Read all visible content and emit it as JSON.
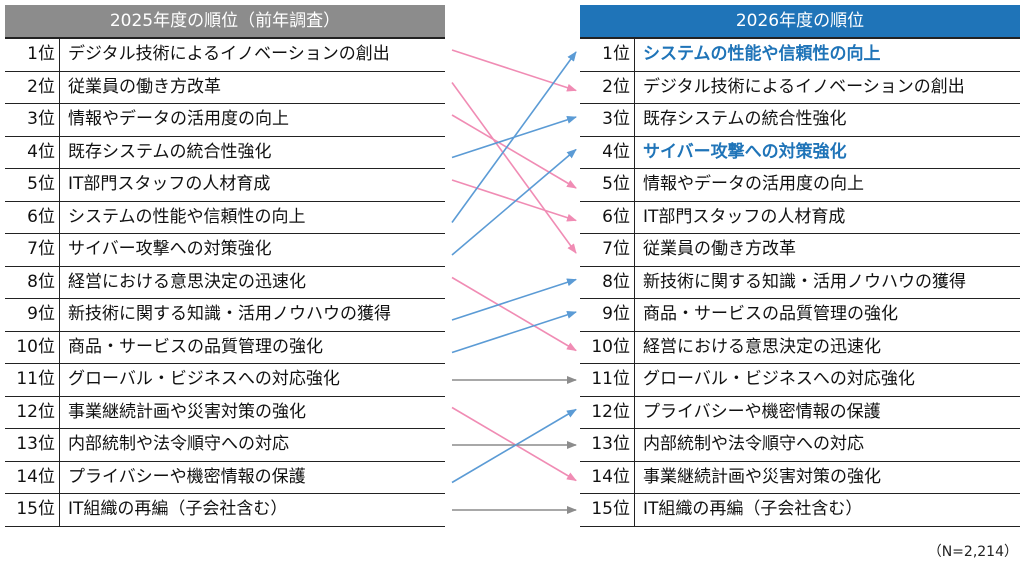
{
  "left": {
    "header": "2025年度の順位（前年調査）",
    "rows": [
      {
        "rank": "1位",
        "label": "デジタル技術によるイノベーションの創出"
      },
      {
        "rank": "2位",
        "label": "従業員の働き方改革"
      },
      {
        "rank": "3位",
        "label": "情報やデータの活用度の向上"
      },
      {
        "rank": "4位",
        "label": "既存システムの統合性強化"
      },
      {
        "rank": "5位",
        "label": "IT部門スタッフの人材育成"
      },
      {
        "rank": "6位",
        "label": "システムの性能や信頼性の向上"
      },
      {
        "rank": "7位",
        "label": "サイバー攻撃への対策強化"
      },
      {
        "rank": "8位",
        "label": "経営における意思決定の迅速化"
      },
      {
        "rank": "9位",
        "label": "新技術に関する知識・活用ノウハウの獲得"
      },
      {
        "rank": "10位",
        "label": "商品・サービスの品質管理の強化"
      },
      {
        "rank": "11位",
        "label": "グローバル・ビジネスへの対応強化"
      },
      {
        "rank": "12位",
        "label": "事業継続計画や災害対策の強化"
      },
      {
        "rank": "13位",
        "label": "内部統制や法令順守への対応"
      },
      {
        "rank": "14位",
        "label": "プライバシーや機密情報の保護"
      },
      {
        "rank": "15位",
        "label": "IT組織の再編（子会社含む）"
      }
    ]
  },
  "right": {
    "header": "2026年度の順位",
    "rows": [
      {
        "rank": "1位",
        "label": "システムの性能や信頼性の向上"
      },
      {
        "rank": "2位",
        "label": "デジタル技術によるイノベーションの創出"
      },
      {
        "rank": "3位",
        "label": "既存システムの統合性強化"
      },
      {
        "rank": "4位",
        "label": "サイバー攻撃への対策強化"
      },
      {
        "rank": "5位",
        "label": "情報やデータの活用度の向上"
      },
      {
        "rank": "6位",
        "label": "IT部門スタッフの人材育成"
      },
      {
        "rank": "7位",
        "label": "従業員の働き方改革"
      },
      {
        "rank": "8位",
        "label": "新技術に関する知識・活用ノウハウの獲得"
      },
      {
        "rank": "9位",
        "label": "商品・サービスの品質管理の強化"
      },
      {
        "rank": "10位",
        "label": "経営における意思決定の迅速化"
      },
      {
        "rank": "11位",
        "label": "グローバル・ビジネスへの対応強化"
      },
      {
        "rank": "12位",
        "label": "プライバシーや機密情報の保護"
      },
      {
        "rank": "13位",
        "label": "内部統制や法令順守への対応"
      },
      {
        "rank": "14位",
        "label": "事業継続計画や災害対策の強化"
      },
      {
        "rank": "15位",
        "label": "IT組織の再編（子会社含む）"
      }
    ]
  },
  "note": "（N=2,214）"
}
